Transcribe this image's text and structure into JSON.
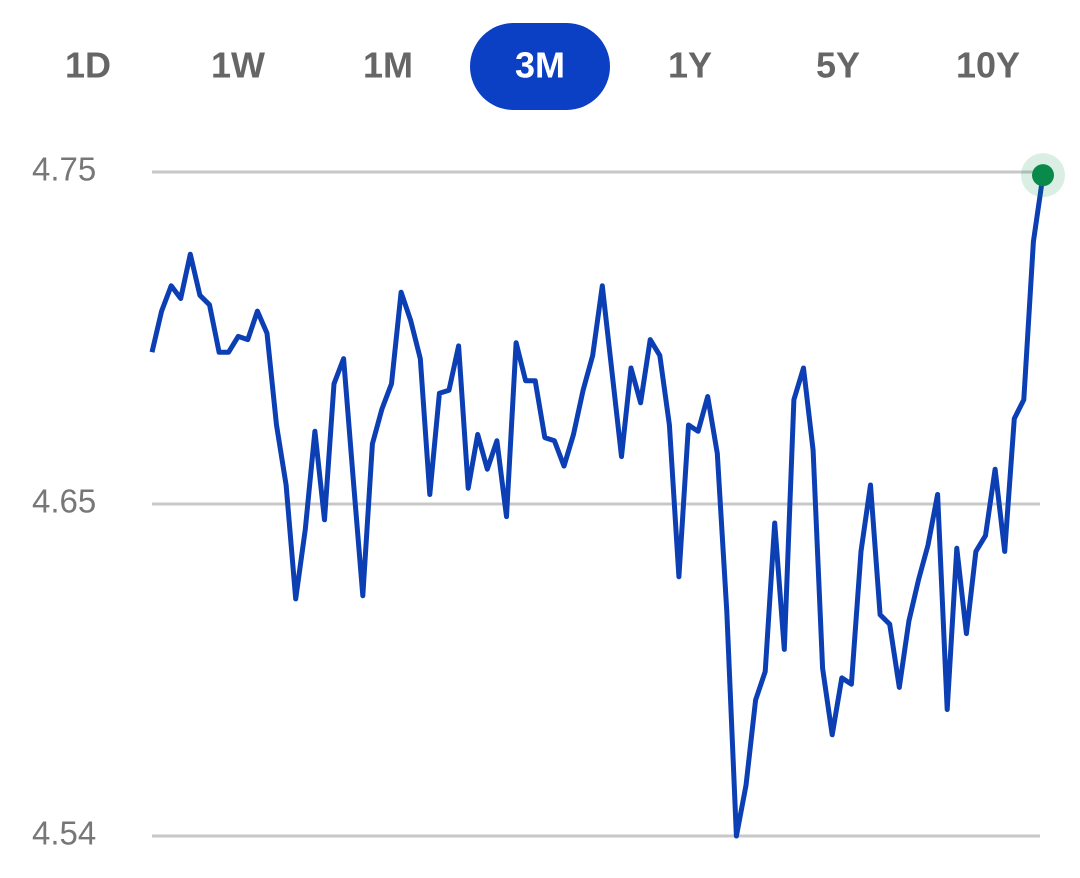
{
  "tabs": [
    "1D",
    "1W",
    "1M",
    "3M",
    "1Y",
    "5Y",
    "10Y"
  ],
  "selected_tab": 3,
  "chart_data": {
    "type": "line",
    "color": "#0b3fb3",
    "end_marker_color": "#0a8a4a",
    "grid": true,
    "ylim": [
      4.54,
      4.75
    ],
    "yticks": [
      4.75,
      {
        "value": 4.645,
        "label": "4.65"
      },
      4.54
    ],
    "values": [
      4.693,
      4.706,
      4.714,
      4.71,
      4.724,
      4.711,
      4.708,
      4.693,
      4.693,
      4.698,
      4.697,
      4.706,
      4.699,
      4.67,
      4.651,
      4.615,
      4.637,
      4.668,
      4.64,
      4.683,
      4.691,
      4.653,
      4.616,
      4.664,
      4.675,
      4.683,
      4.712,
      4.703,
      4.691,
      4.648,
      4.68,
      4.681,
      4.695,
      4.65,
      4.667,
      4.656,
      4.665,
      4.641,
      4.696,
      4.684,
      4.684,
      4.666,
      4.665,
      4.657,
      4.667,
      4.681,
      4.692,
      4.714,
      4.687,
      4.66,
      4.688,
      4.677,
      4.697,
      4.692,
      4.67,
      4.622,
      4.67,
      4.668,
      4.679,
      4.661,
      4.611,
      4.54,
      4.556,
      4.583,
      4.592,
      4.639,
      4.599,
      4.678,
      4.688,
      4.662,
      4.593,
      4.572,
      4.59,
      4.588,
      4.63,
      4.651,
      4.61,
      4.607,
      4.587,
      4.608,
      4.621,
      4.632,
      4.648,
      4.58,
      4.631,
      4.604,
      4.63,
      4.635,
      4.656,
      4.63,
      4.672,
      4.678,
      4.728,
      4.749
    ]
  }
}
